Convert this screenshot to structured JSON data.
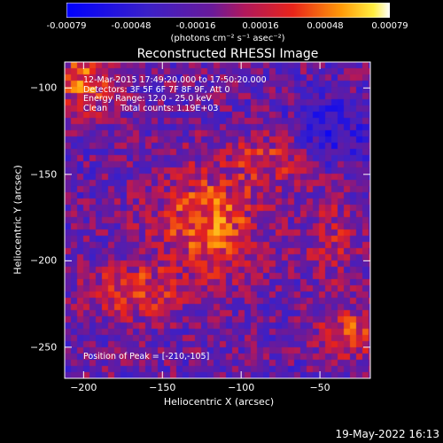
{
  "chart_data": {
    "type": "heatmap",
    "title": "Reconstructed RHESSI Image",
    "xlabel": "Heliocentric X (arcsec)",
    "ylabel": "Heliocentric Y (arcsec)",
    "xlim": [
      -212,
      -18
    ],
    "ylim": [
      -268,
      -85
    ],
    "xticks": [
      -200,
      -150,
      -100,
      -50
    ],
    "yticks": [
      -100,
      -150,
      -200,
      -250
    ],
    "colorbar": {
      "min": -0.00079,
      "max": 0.00079,
      "ticks": [
        "-0.00079",
        "-0.00048",
        "-0.00016",
        "0.00016",
        "0.00048",
        "0.00079"
      ],
      "unit": "(photons cm⁻² s⁻¹ asec⁻²)",
      "colormap": "blue-purple-red-yellow-white"
    },
    "annotations": [
      "12-Mar-2015 17:49:20.000 to 17:50:20.000",
      "Detectors: 3F 5F 6F 7F 8F 9F, Att 0",
      "Energy Range: 12.0 - 25.0 keV",
      "Clean     Total counts: 1.19E+03"
    ],
    "peak_label": "Position of Peak = [-210,-105]",
    "peak": [
      -210,
      -105
    ]
  },
  "timestamp": "19-May-2022 16:13"
}
